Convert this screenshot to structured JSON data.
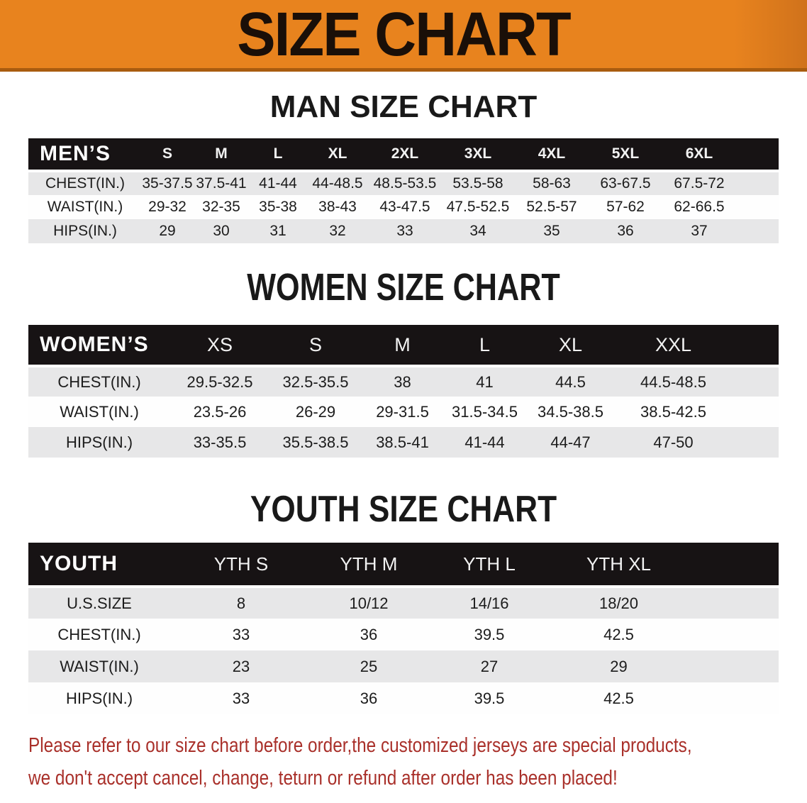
{
  "banner": {
    "title": "SIZE CHART",
    "bg_color": "#E8831E",
    "edge_color": "#A95C0F"
  },
  "sections": {
    "man": {
      "heading": "MAN SIZE CHART"
    },
    "women": {
      "heading": "WOMEN SIZE CHART"
    },
    "youth": {
      "heading": "YOUTH SIZE CHART"
    }
  },
  "tables": {
    "men": {
      "label": "MEN’S",
      "columns": [
        "S",
        "M",
        "L",
        "XL",
        "2XL",
        "3XL",
        "4XL",
        "5XL",
        "6XL"
      ],
      "rows": [
        {
          "label": "CHEST(IN.)",
          "values": [
            "35-37.5",
            "37.5-41",
            "41-44",
            "44-48.5",
            "48.5-53.5",
            "53.5-58",
            "58-63",
            "63-67.5",
            "67.5-72"
          ]
        },
        {
          "label": "WAIST(IN.)",
          "values": [
            "29-32",
            "32-35",
            "35-38",
            "38-43",
            "43-47.5",
            "47.5-52.5",
            "52.5-57",
            "57-62",
            "62-66.5"
          ]
        },
        {
          "label": "HIPS(IN.)",
          "values": [
            "29",
            "30",
            "31",
            "32",
            "33",
            "34",
            "35",
            "36",
            "37"
          ]
        }
      ]
    },
    "women": {
      "label": "WOMEN’S",
      "columns": [
        "XS",
        "S",
        "M",
        "L",
        "XL",
        "XXL"
      ],
      "rows": [
        {
          "label": "CHEST(IN.)",
          "values": [
            "29.5-32.5",
            "32.5-35.5",
            "38",
            "41",
            "44.5",
            "44.5-48.5"
          ]
        },
        {
          "label": "WAIST(IN.)",
          "values": [
            "23.5-26",
            "26-29",
            "29-31.5",
            "31.5-34.5",
            "34.5-38.5",
            "38.5-42.5"
          ]
        },
        {
          "label": "HIPS(IN.)",
          "values": [
            "33-35.5",
            "35.5-38.5",
            "38.5-41",
            "41-44",
            "44-47",
            "47-50"
          ]
        }
      ]
    },
    "youth": {
      "label": "YOUTH",
      "columns": [
        "YTH S",
        "YTH M",
        "YTH L",
        "YTH XL"
      ],
      "rows": [
        {
          "label": "U.S.SIZE",
          "values": [
            "8",
            "10/12",
            "14/16",
            "18/20"
          ]
        },
        {
          "label": "CHEST(IN.)",
          "values": [
            "33",
            "36",
            "39.5",
            "42.5"
          ]
        },
        {
          "label": "WAIST(IN.)",
          "values": [
            "23",
            "25",
            "27",
            "29"
          ]
        },
        {
          "label": "HIPS(IN.)",
          "values": [
            "33",
            "36",
            "39.5",
            "42.5"
          ]
        }
      ]
    }
  },
  "colors": {
    "header_bar": "#171314",
    "stripe_gray": "#E7E7E8",
    "notice_red": "#A9302A"
  },
  "footer": {
    "line1": "Please refer to our size chart before order,the customized jerseys are special products,",
    "line2": "we don't accept cancel, change, teturn or refund after order has been placed!"
  }
}
